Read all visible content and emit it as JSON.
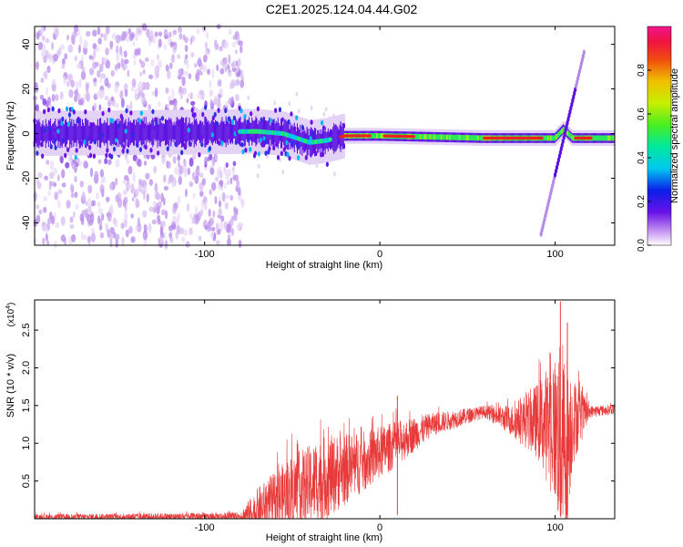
{
  "figure": {
    "title": "C2E1.2025.124.04.44.G02"
  },
  "chart_data": [
    {
      "type": "heatmap",
      "xlabel": "Height of straight line (km)",
      "ylabel": "Frequency (Hz)",
      "xlim": [
        -197,
        134
      ],
      "ylim": [
        -50,
        48
      ],
      "x_ticks": [
        -100,
        0,
        100
      ],
      "x_tick_labels": [
        "-100",
        "0",
        "100"
      ],
      "y_ticks": [
        -40,
        -20,
        0,
        20,
        40
      ],
      "y_tick_labels": [
        "-40",
        "-20",
        "0",
        "20",
        "40"
      ],
      "colorbar": {
        "label": "Normalized spectral amplitude",
        "range": [
          0,
          1
        ],
        "ticks": [
          0.0,
          0.2,
          0.4,
          0.6,
          0.8
        ],
        "tick_labels": [
          "0.0",
          "0.2",
          "0.4",
          "0.6",
          "0.8"
        ]
      },
      "features": {
        "main_band": [
          {
            "x": -197,
            "y": 0
          },
          {
            "x": -70,
            "y": 1
          },
          {
            "x": -55,
            "y": 0
          },
          {
            "x": -40,
            "y": -4
          },
          {
            "x": -30,
            "y": -3
          },
          {
            "x": -20,
            "y": -1
          },
          {
            "x": 0,
            "y": -1
          },
          {
            "x": 60,
            "y": -2
          },
          {
            "x": 100,
            "y": -2
          },
          {
            "x": 105,
            "y": 2
          },
          {
            "x": 110,
            "y": -2
          },
          {
            "x": 134,
            "y": -2
          }
        ],
        "noise_region_x": [
          -197,
          -78
        ],
        "chirp": {
          "x0": 92,
          "y0": -45,
          "x1": 117,
          "y1": 38
        }
      }
    },
    {
      "type": "line",
      "xlabel": "Height of straight line (km)",
      "ylabel": "SNR (10 * v/v)",
      "multiplier_label": "(x10",
      "multiplier_exponent": "4",
      "multiplier_close": ")",
      "xlim": [
        -197,
        134
      ],
      "ylim": [
        0,
        2.9
      ],
      "x_ticks": [
        -100,
        0,
        100
      ],
      "x_tick_labels": [
        "-100",
        "0",
        "100"
      ],
      "y_ticks": [
        0.5,
        1.0,
        1.5,
        2.0,
        2.5
      ],
      "y_tick_labels": [
        "0.5",
        "1.0",
        "1.5",
        "2.0",
        "2.5"
      ],
      "color": "#e83a3a",
      "envelope": [
        {
          "x": -197,
          "base": 0.02,
          "amp": 0.04
        },
        {
          "x": -80,
          "base": 0.03,
          "amp": 0.05
        },
        {
          "x": -70,
          "base": 0.1,
          "amp": 0.3
        },
        {
          "x": -50,
          "base": 0.35,
          "amp": 0.5
        },
        {
          "x": -30,
          "base": 0.55,
          "amp": 0.55
        },
        {
          "x": -10,
          "base": 0.75,
          "amp": 0.4
        },
        {
          "x": 10,
          "base": 1.0,
          "amp": 0.3
        },
        {
          "x": 30,
          "base": 1.25,
          "amp": 0.15
        },
        {
          "x": 60,
          "base": 1.42,
          "amp": 0.08
        },
        {
          "x": 75,
          "base": 1.3,
          "amp": 0.2
        },
        {
          "x": 90,
          "base": 1.3,
          "amp": 0.5
        },
        {
          "x": 100,
          "base": 1.2,
          "amp": 1.0
        },
        {
          "x": 105,
          "base": 0.9,
          "amp": 1.5
        },
        {
          "x": 110,
          "base": 1.3,
          "amp": 0.6
        },
        {
          "x": 120,
          "base": 1.42,
          "amp": 0.08
        },
        {
          "x": 134,
          "base": 1.45,
          "amp": 0.06
        }
      ],
      "peaks": [
        {
          "x": 10,
          "y": 1.63
        },
        {
          "x": 103,
          "y": 2.88
        },
        {
          "x": 107,
          "y": 2.6
        }
      ]
    }
  ]
}
